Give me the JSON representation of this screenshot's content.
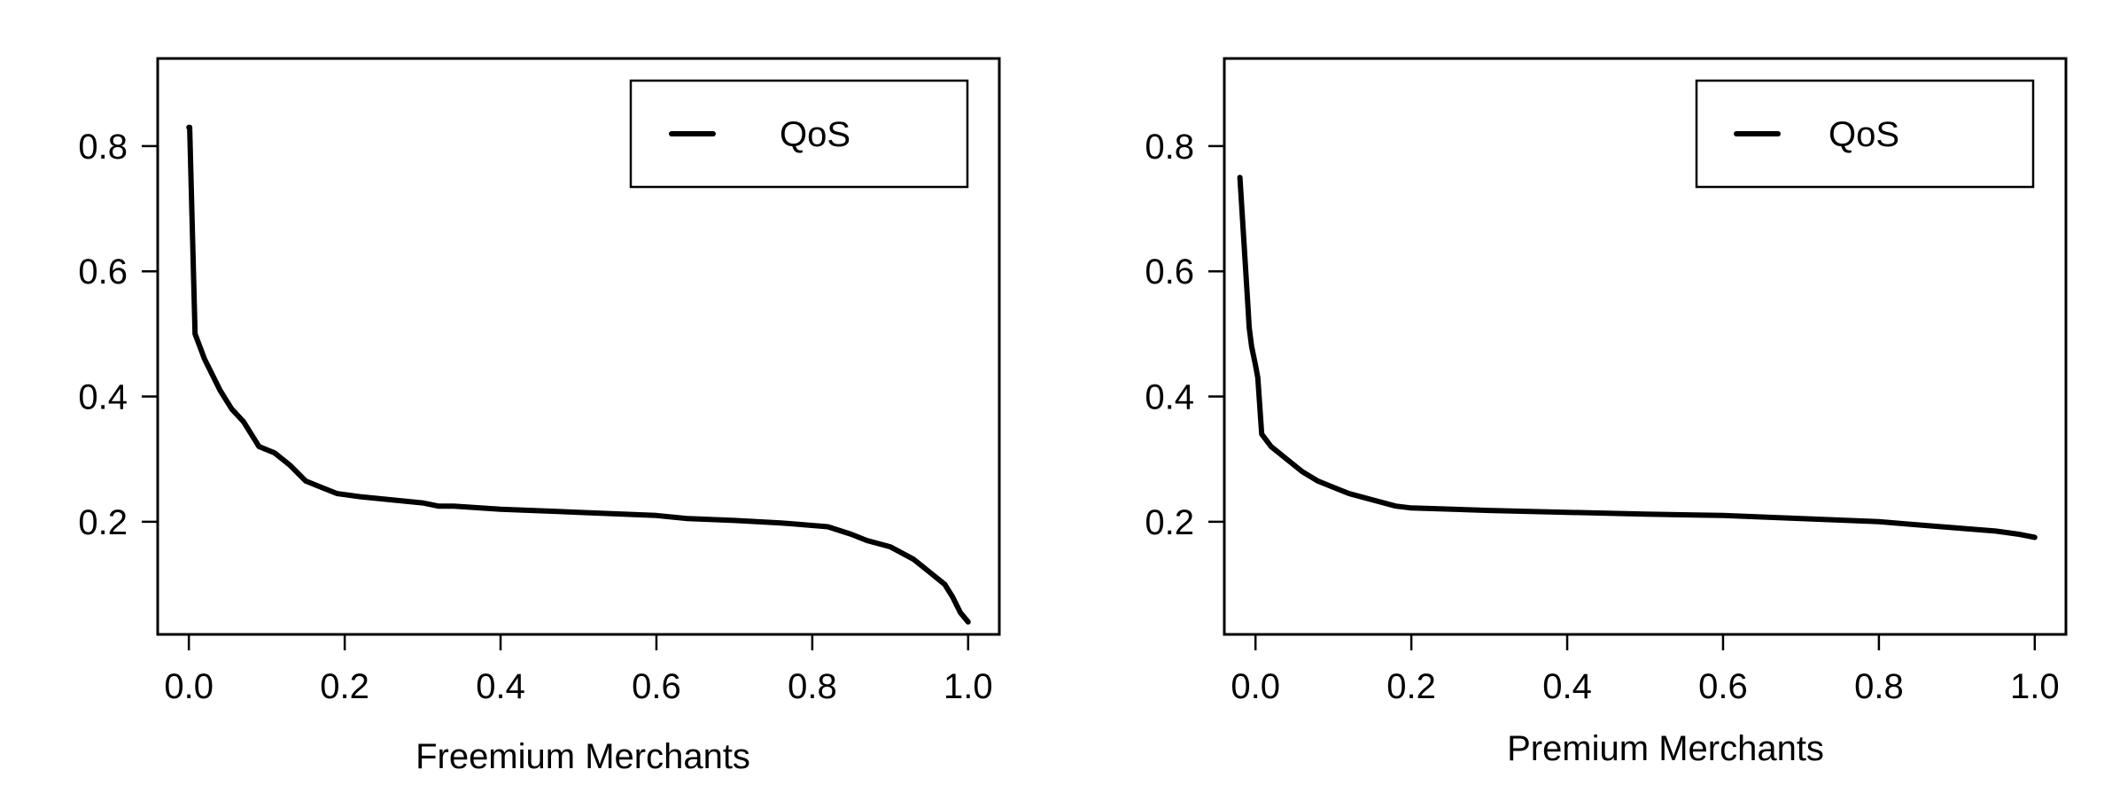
{
  "chart_data": [
    {
      "type": "line",
      "title": "",
      "xlabel": "Freemium Merchants",
      "ylabel": "",
      "xlim": [
        -0.04,
        1.04
      ],
      "ylim": [
        0.02,
        0.94
      ],
      "xticks": [
        "0.0",
        "0.2",
        "0.4",
        "0.6",
        "0.8",
        "1.0"
      ],
      "yticks": [
        "0.2",
        "0.4",
        "0.6",
        "0.8"
      ],
      "grid": false,
      "legend": "top-right",
      "series": [
        {
          "name": "QoS",
          "color": "#000000",
          "x": [
            0.0,
            0.001,
            0.008,
            0.02,
            0.04,
            0.055,
            0.07,
            0.09,
            0.11,
            0.13,
            0.15,
            0.17,
            0.19,
            0.22,
            0.26,
            0.3,
            0.32,
            0.34,
            0.4,
            0.5,
            0.6,
            0.64,
            0.7,
            0.76,
            0.82,
            0.85,
            0.87,
            0.9,
            0.93,
            0.95,
            0.97,
            0.98,
            0.99,
            1.0
          ],
          "y": [
            0.83,
            0.83,
            0.5,
            0.46,
            0.41,
            0.38,
            0.36,
            0.32,
            0.31,
            0.29,
            0.265,
            0.255,
            0.245,
            0.24,
            0.235,
            0.23,
            0.225,
            0.225,
            0.22,
            0.215,
            0.21,
            0.205,
            0.202,
            0.198,
            0.192,
            0.18,
            0.17,
            0.16,
            0.14,
            0.12,
            0.1,
            0.08,
            0.055,
            0.04
          ]
        }
      ]
    },
    {
      "type": "line",
      "title": "",
      "xlabel": "Premium Merchants",
      "ylabel": "",
      "xlim": [
        -0.04,
        1.04
      ],
      "ylim": [
        0.02,
        0.94
      ],
      "xticks": [
        "0.0",
        "0.2",
        "0.4",
        "0.6",
        "0.8",
        "1.0"
      ],
      "yticks": [
        "0.2",
        "0.4",
        "0.6",
        "0.8"
      ],
      "grid": false,
      "legend": "top-right",
      "series": [
        {
          "name": "QoS",
          "color": "#000000",
          "x": [
            -0.02,
            -0.015,
            -0.01,
            -0.008,
            -0.005,
            0.0,
            0.003,
            0.008,
            0.02,
            0.04,
            0.06,
            0.08,
            0.1,
            0.12,
            0.15,
            0.18,
            0.2,
            0.3,
            0.4,
            0.5,
            0.6,
            0.7,
            0.8,
            0.85,
            0.9,
            0.95,
            0.98,
            1.0
          ],
          "y": [
            0.75,
            0.65,
            0.55,
            0.51,
            0.48,
            0.45,
            0.43,
            0.34,
            0.32,
            0.3,
            0.28,
            0.265,
            0.255,
            0.245,
            0.235,
            0.225,
            0.222,
            0.218,
            0.215,
            0.212,
            0.21,
            0.205,
            0.2,
            0.195,
            0.19,
            0.185,
            0.18,
            0.175
          ]
        }
      ]
    }
  ]
}
